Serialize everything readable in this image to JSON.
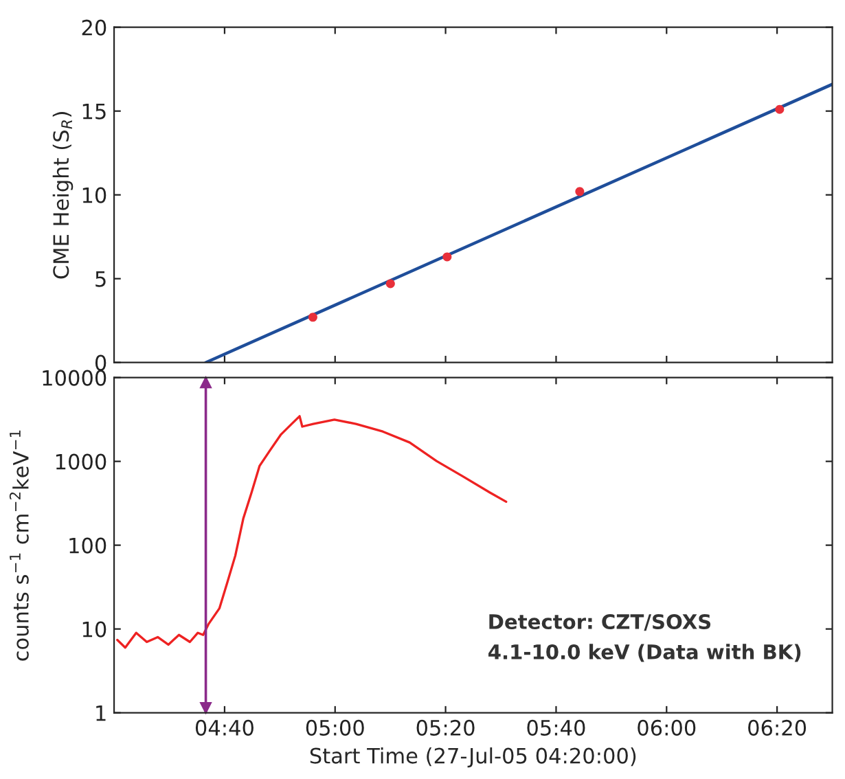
{
  "chart_data": [
    {
      "type": "scatter",
      "ylabel": "CME Height (S$_{R}$)",
      "xlim": [
        4.3333,
        6.5
      ],
      "ylim": [
        0,
        20
      ],
      "yticks": [
        0,
        5,
        10,
        15,
        20
      ],
      "xticks": [
        {
          "value": 4.6667,
          "label": null
        },
        {
          "value": 5,
          "label": null
        },
        {
          "value": 5.3333,
          "label": null
        },
        {
          "value": 5.6667,
          "label": null
        },
        {
          "value": 6,
          "label": null
        },
        {
          "value": 6.3333,
          "label": null
        }
      ],
      "tick_labels": "y",
      "grid": false,
      "legend": false,
      "series": [
        {
          "type": "scatter",
          "color": "#e8303a",
          "marker": "circle",
          "x": [
            4.933,
            5.167,
            5.338,
            5.738,
            6.341
          ],
          "values": [
            2.7,
            4.7,
            6.3,
            10.2,
            15.1
          ]
        },
        {
          "type": "line",
          "color": "#1f4e9a",
          "marker": "none",
          "line_style": "solid",
          "x": [
            4.61,
            6.5
          ],
          "values": [
            0,
            16.6
          ]
        }
      ]
    },
    {
      "type": "line",
      "xlabel": "Start Time (27-Jul-05 04:20:00)",
      "ylabel": "counts s$^{−1}$ cm$^{−2}$keV$^{−1}$",
      "log": "y",
      "xlim": [
        4.3333,
        6.5
      ],
      "ylim": [
        1,
        10000
      ],
      "yticks": [
        1,
        10,
        100,
        1000,
        10000
      ],
      "xticks": [
        {
          "value": 4.6667,
          "label": "04:40"
        },
        {
          "value": 5,
          "label": "05:00"
        },
        {
          "value": 5.3333,
          "label": "05:20"
        },
        {
          "value": 5.6667,
          "label": "05:40"
        },
        {
          "value": 6,
          "label": "06:00"
        },
        {
          "value": 6.3333,
          "label": "06:20"
        }
      ],
      "grid": false,
      "legend": false,
      "marker": "none",
      "line_style": "solid",
      "ref_lines": [
        {
          "axis": "x",
          "value": 4.61,
          "color": "#8b2a8a"
        }
      ],
      "annotations": [
        "Detector: CZT/SOXS",
        "4.1-10.0 keV (Data with BK)"
      ],
      "series": [
        {
          "color": "#ee2222",
          "x": [
            4.343,
            4.367,
            4.4,
            4.432,
            4.465,
            4.497,
            4.529,
            4.562,
            4.586,
            4.602,
            4.618,
            4.651,
            4.675,
            4.699,
            4.723,
            4.748,
            4.772,
            4.804,
            4.837,
            4.869,
            4.893,
            4.901,
            4.934,
            4.998,
            5.063,
            5.144,
            5.225,
            5.306,
            5.386,
            5.467,
            5.516
          ],
          "values": [
            7.4,
            6,
            9,
            7,
            8,
            6.5,
            8.5,
            7,
            9,
            8.5,
            11.4,
            17.6,
            36,
            75,
            207,
            425,
            880,
            1360,
            2100,
            2800,
            3460,
            2600,
            2800,
            3150,
            2800,
            2270,
            1680,
            1010,
            660,
            425,
            330
          ]
        }
      ]
    }
  ]
}
